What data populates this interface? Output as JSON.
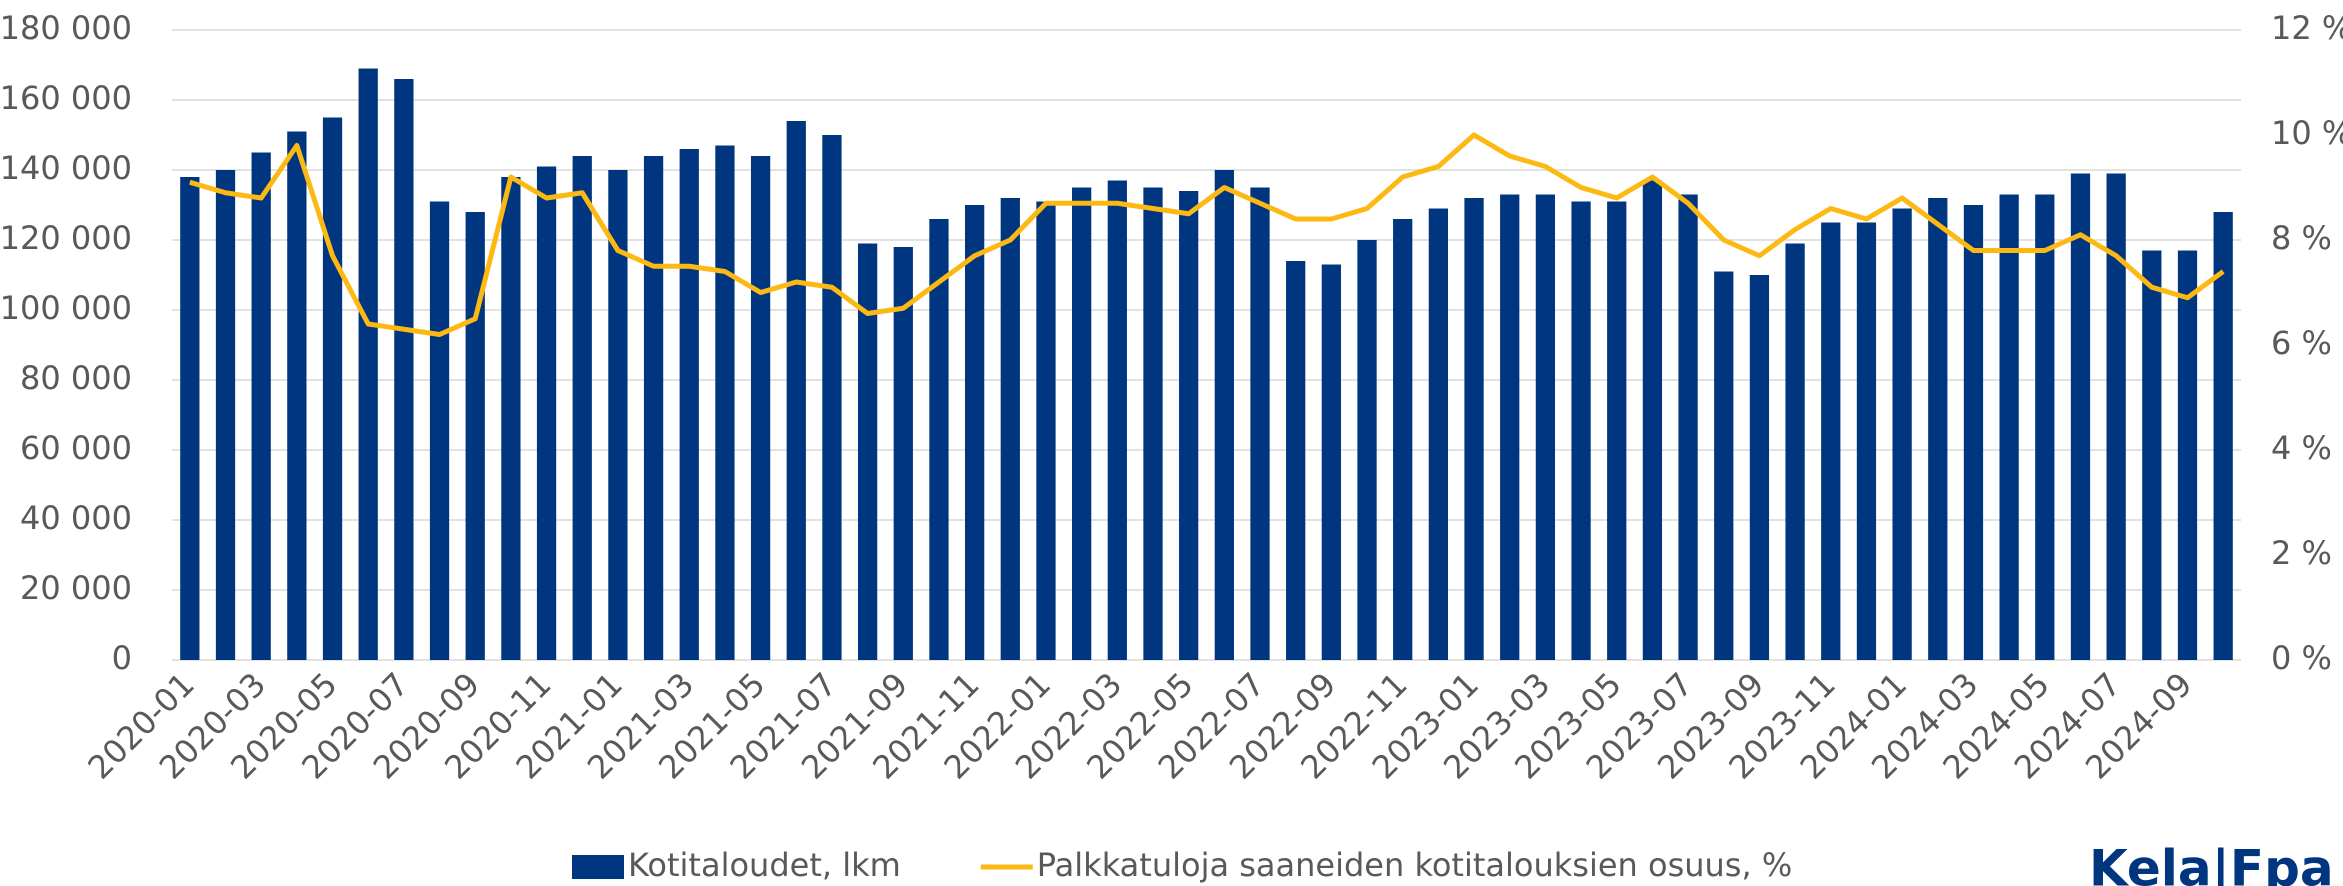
{
  "chart_data": {
    "type": "bar",
    "categories": [
      "2020-01",
      null,
      "2020-03",
      null,
      "2020-05",
      null,
      "2020-07",
      null,
      "2020-09",
      null,
      "2020-11",
      null,
      "2021-01",
      null,
      "2021-03",
      null,
      "2021-05",
      null,
      "2021-07",
      null,
      "2021-09",
      null,
      "2021-11",
      null,
      "2022-01",
      null,
      "2022-03",
      null,
      "2022-05",
      null,
      "2022-07",
      null,
      "2022-09",
      null,
      "2022-11",
      null,
      "2023-01",
      null,
      "2023-03",
      null,
      "2023-05",
      null,
      "2023-07",
      null,
      "2023-09",
      null,
      "2023-11",
      null,
      "2024-01",
      null,
      "2024-03",
      null,
      "2024-05",
      null,
      "2024-07",
      null,
      "2024-09",
      null
    ],
    "series": [
      {
        "name": "Kotitaloudet, lkm",
        "type": "bar",
        "color": "#003580",
        "values": [
          138000,
          140000,
          145000,
          151000,
          155000,
          169000,
          166000,
          131000,
          128000,
          138000,
          141000,
          144000,
          140000,
          144000,
          146000,
          147000,
          144000,
          154000,
          150000,
          119000,
          118000,
          126000,
          130000,
          132000,
          131000,
          135000,
          137000,
          135000,
          134000,
          140000,
          135000,
          114000,
          113000,
          120000,
          126000,
          129000,
          132000,
          133000,
          133000,
          131000,
          131000,
          137000,
          133000,
          111000,
          110000,
          119000,
          125000,
          125000,
          129000,
          132000,
          130000,
          133000,
          133000,
          139000,
          139000,
          117000,
          117000,
          128000
        ]
      },
      {
        "name": "Palkkatuloja saaneiden kotitalouksien osuus, %",
        "type": "line",
        "color": "#fdb913",
        "axis": "y2",
        "values": [
          9.1,
          8.9,
          8.8,
          9.8,
          7.7,
          6.4,
          6.3,
          6.2,
          6.5,
          9.2,
          8.8,
          8.9,
          7.8,
          7.5,
          7.5,
          7.4,
          7.0,
          7.2,
          7.1,
          6.6,
          6.7,
          7.2,
          7.7,
          8.0,
          8.7,
          8.7,
          8.7,
          8.6,
          8.5,
          9.0,
          8.7,
          8.4,
          8.4,
          8.6,
          9.2,
          9.4,
          10.0,
          9.6,
          9.4,
          9.0,
          8.8,
          9.2,
          8.7,
          8.0,
          7.7,
          8.2,
          8.6,
          8.4,
          8.8,
          8.3,
          7.8,
          7.8,
          7.8,
          8.1,
          7.7,
          7.1,
          6.9,
          7.4
        ]
      }
    ],
    "ylim": [
      0,
      180000
    ],
    "yticks": [
      0,
      {
        "value": 20000,
        "label": "20 000"
      },
      {
        "value": 40000,
        "label": "40 000"
      },
      {
        "value": 60000,
        "label": "60 000"
      },
      {
        "value": 80000,
        "label": "80 000"
      },
      {
        "value": 100000,
        "label": "100 000"
      },
      {
        "value": 120000,
        "label": "120 000"
      },
      {
        "value": 140000,
        "label": "140 000"
      },
      {
        "value": 160000,
        "label": "160 000"
      },
      {
        "value": 180000,
        "label": "180 000"
      }
    ],
    "y2lim": [
      0,
      12
    ],
    "y2ticks": [
      {
        "value": 0,
        "label": "0 %"
      },
      {
        "value": 2,
        "label": "2 %"
      },
      {
        "value": 4,
        "label": "4 %"
      },
      {
        "value": 6,
        "label": "6 %"
      },
      {
        "value": 8,
        "label": "8 %"
      },
      {
        "value": 10,
        "label": "10 %"
      },
      {
        "value": 12,
        "label": "12 %"
      }
    ],
    "grid": true,
    "legend": "bottom",
    "logo": "Kela|Fpa"
  }
}
